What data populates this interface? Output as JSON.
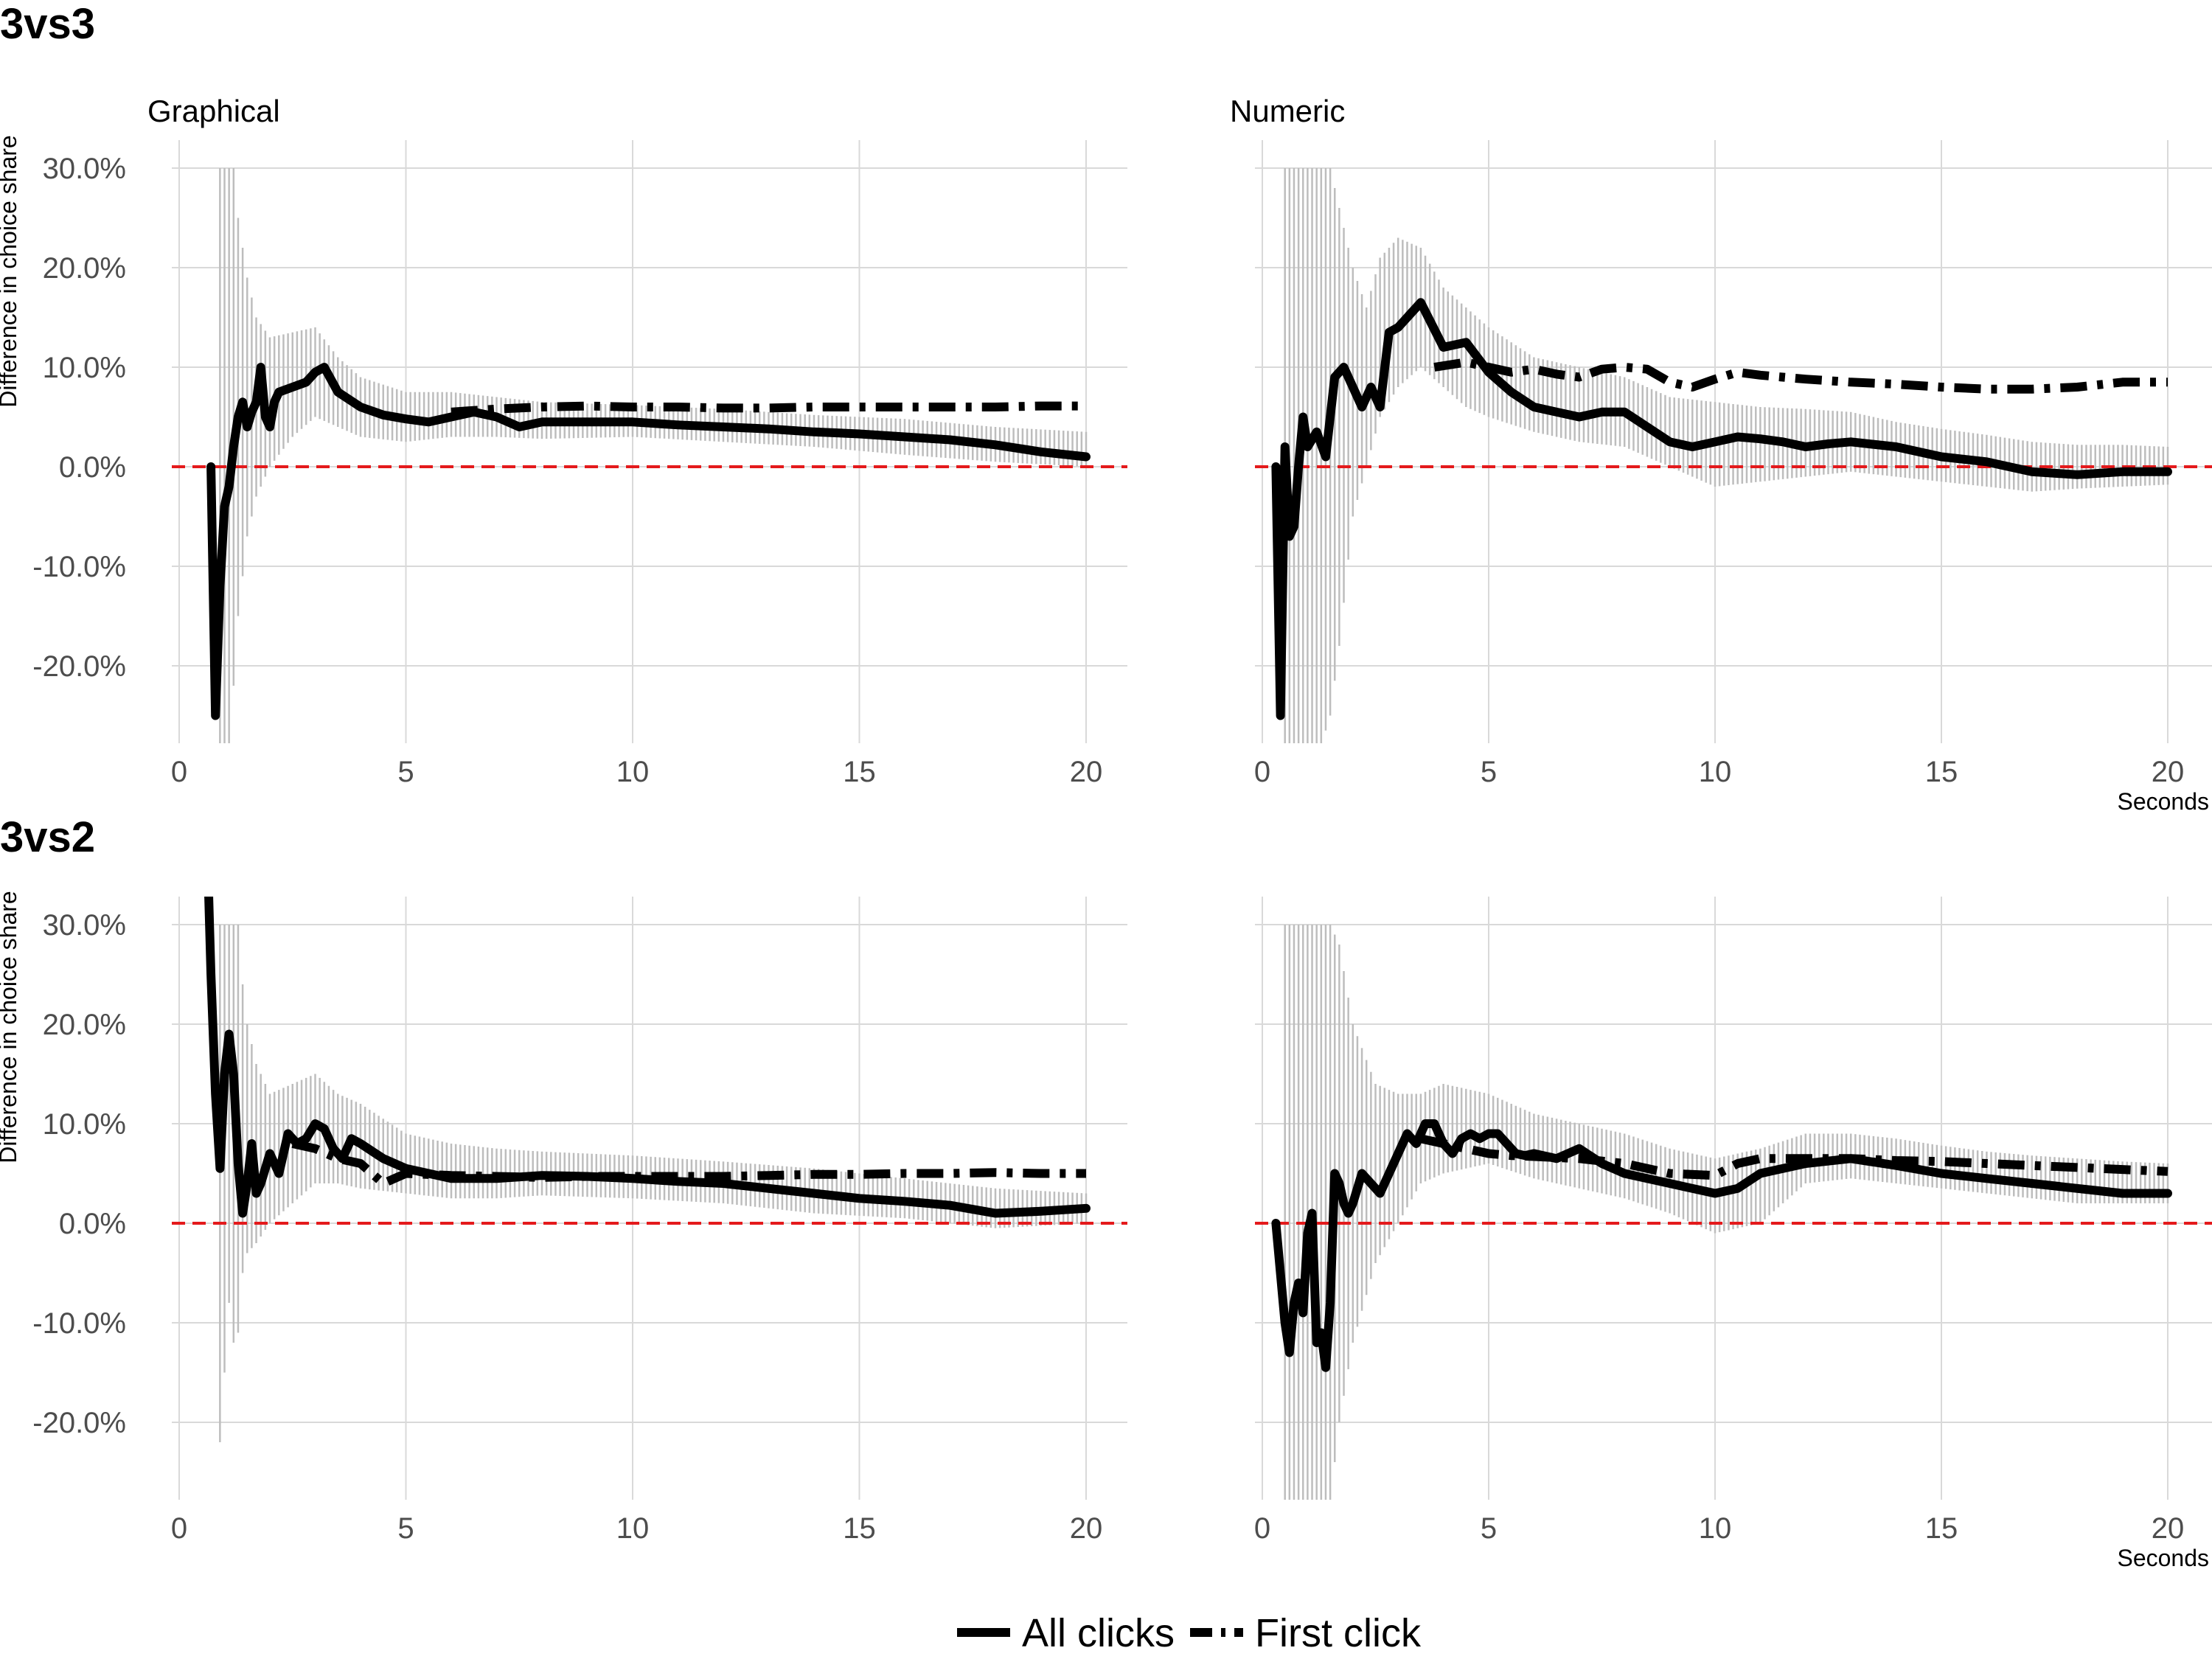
{
  "figure": {
    "rows": [
      {
        "title": "3vs3"
      },
      {
        "title": "3vs2"
      }
    ],
    "columns": [
      {
        "title": "Graphical"
      },
      {
        "title": "Numeric"
      }
    ],
    "legend": {
      "position": "bottom",
      "items": [
        {
          "label": "All clicks",
          "style": "solid"
        },
        {
          "label": "First click",
          "style": "dashed"
        }
      ]
    },
    "colors": {
      "line": "#000000",
      "reference_line": "#e41a1c",
      "error_bars": "#bdbdbd",
      "grid": "#d9d9d9"
    }
  },
  "chart_data": [
    {
      "type": "line",
      "panel": "3vs3 / Graphical",
      "row": "3vs3",
      "column": "Graphical",
      "ylabel": "Difference in choice share",
      "xlabel": "",
      "xlim": [
        0,
        20
      ],
      "ylim": [
        -0.3,
        0.3
      ],
      "xticks": [
        0,
        5,
        10,
        15,
        20
      ],
      "yticks": [
        -0.2,
        -0.1,
        0.0,
        0.1,
        0.2,
        0.3
      ],
      "ytick_labels": [
        "-20.0%",
        "-10.0%",
        "0.0%",
        "10.0%",
        "20.0%",
        "30.0%"
      ],
      "grid": true,
      "reference_line_y": 0,
      "series": [
        {
          "name": "All clicks",
          "style": "solid",
          "x": [
            0.7,
            0.8,
            0.9,
            1.0,
            1.1,
            1.2,
            1.3,
            1.4,
            1.5,
            1.6,
            1.7,
            1.8,
            1.9,
            2.0,
            2.1,
            2.2,
            2.5,
            2.8,
            3.0,
            3.2,
            3.5,
            4.0,
            4.5,
            5.0,
            5.5,
            6.0,
            6.5,
            7.0,
            7.5,
            8.0,
            9.0,
            10.0,
            11.0,
            12.0,
            13.0,
            14.0,
            15.0,
            16.0,
            17.0,
            18.0,
            19.0,
            20.0
          ],
          "y": [
            0.0,
            -0.25,
            -0.12,
            -0.04,
            -0.02,
            0.02,
            0.05,
            0.065,
            0.04,
            0.055,
            0.065,
            0.1,
            0.05,
            0.04,
            0.065,
            0.075,
            0.08,
            0.085,
            0.095,
            0.1,
            0.075,
            0.06,
            0.052,
            0.048,
            0.045,
            0.05,
            0.055,
            0.05,
            0.04,
            0.045,
            0.045,
            0.045,
            0.042,
            0.04,
            0.038,
            0.035,
            0.033,
            0.03,
            0.027,
            0.022,
            0.015,
            0.01
          ]
        },
        {
          "name": "First click",
          "style": "dashed",
          "x": [
            6.0,
            7.0,
            8.0,
            9.0,
            10.0,
            11.0,
            12.0,
            13.0,
            14.0,
            15.0,
            16.0,
            17.0,
            18.0,
            19.0,
            20.0
          ],
          "y": [
            0.055,
            0.058,
            0.06,
            0.061,
            0.06,
            0.06,
            0.059,
            0.059,
            0.06,
            0.06,
            0.06,
            0.06,
            0.06,
            0.061,
            0.061
          ]
        },
        {
          "name": "95% CI",
          "style": "error-bars",
          "x": [
            0.9,
            1.0,
            1.1,
            1.2,
            1.3,
            1.5,
            1.7,
            2.0,
            2.5,
            3.0,
            3.5,
            4.0,
            5.0,
            6.0,
            7.0,
            8.0,
            10.0,
            12.0,
            14.0,
            16.0,
            18.0,
            20.0
          ],
          "low": [
            -0.28,
            -0.28,
            -0.28,
            -0.22,
            -0.15,
            -0.07,
            -0.03,
            0.0,
            0.03,
            0.05,
            0.04,
            0.03,
            0.025,
            0.03,
            0.03,
            0.028,
            0.03,
            0.025,
            0.02,
            0.012,
            0.005,
            0.0
          ],
          "high": [
            0.3,
            0.3,
            0.3,
            0.3,
            0.25,
            0.19,
            0.15,
            0.13,
            0.135,
            0.14,
            0.11,
            0.09,
            0.075,
            0.075,
            0.07,
            0.065,
            0.062,
            0.058,
            0.052,
            0.048,
            0.04,
            0.035
          ]
        }
      ]
    },
    {
      "type": "line",
      "panel": "3vs3 / Numeric",
      "row": "3vs3",
      "column": "Numeric",
      "xlabel": "Seconds",
      "xlim": [
        0,
        20
      ],
      "ylim": [
        -0.3,
        0.3
      ],
      "xticks": [
        0,
        5,
        10,
        15,
        20
      ],
      "grid": true,
      "reference_line_y": 0,
      "series": [
        {
          "name": "All clicks",
          "style": "solid",
          "x": [
            0.3,
            0.4,
            0.5,
            0.6,
            0.7,
            0.8,
            0.9,
            1.0,
            1.2,
            1.4,
            1.6,
            1.8,
            2.0,
            2.2,
            2.4,
            2.6,
            2.8,
            3.0,
            3.2,
            3.5,
            4.0,
            4.5,
            5.0,
            5.5,
            6.0,
            6.5,
            7.0,
            7.5,
            8.0,
            8.5,
            9.0,
            9.5,
            10.0,
            10.5,
            11.0,
            11.5,
            12.0,
            12.5,
            13.0,
            14.0,
            15.0,
            16.0,
            17.0,
            18.0,
            19.0,
            20.0
          ],
          "y": [
            0.0,
            -0.25,
            0.02,
            -0.07,
            -0.06,
            0.0,
            0.05,
            0.02,
            0.035,
            0.01,
            0.09,
            0.1,
            0.08,
            0.06,
            0.08,
            0.06,
            0.135,
            0.14,
            0.15,
            0.165,
            0.12,
            0.125,
            0.095,
            0.075,
            0.06,
            0.055,
            0.05,
            0.055,
            0.055,
            0.04,
            0.025,
            0.02,
            0.025,
            0.03,
            0.028,
            0.025,
            0.02,
            0.023,
            0.025,
            0.02,
            0.01,
            0.005,
            -0.005,
            -0.008,
            -0.005,
            -0.005
          ]
        },
        {
          "name": "First click",
          "style": "dashed",
          "x": [
            3.8,
            4.5,
            5.0,
            5.5,
            6.0,
            6.5,
            7.0,
            7.5,
            8.0,
            8.5,
            9.0,
            9.5,
            10.0,
            10.5,
            11.0,
            12.0,
            13.0,
            14.0,
            15.0,
            16.0,
            17.0,
            18.0,
            19.0,
            20.0
          ],
          "y": [
            0.1,
            0.105,
            0.1,
            0.095,
            0.098,
            0.093,
            0.09,
            0.098,
            0.1,
            0.098,
            0.085,
            0.08,
            0.088,
            0.095,
            0.092,
            0.088,
            0.085,
            0.083,
            0.08,
            0.078,
            0.078,
            0.08,
            0.085,
            0.085
          ]
        },
        {
          "name": "95% CI",
          "style": "error-bars",
          "x": [
            0.5,
            0.7,
            0.9,
            1.1,
            1.3,
            1.5,
            1.7,
            2.0,
            2.3,
            2.6,
            3.0,
            3.5,
            4.0,
            4.5,
            5.0,
            6.0,
            7.0,
            8.0,
            9.0,
            10.0,
            11.0,
            12.0,
            13.0,
            14.0,
            15.0,
            16.0,
            17.0,
            18.0,
            19.0,
            20.0
          ],
          "low": [
            -0.28,
            -0.28,
            -0.28,
            -0.28,
            -0.28,
            -0.25,
            -0.18,
            -0.05,
            0.0,
            0.05,
            0.08,
            0.1,
            0.08,
            0.06,
            0.05,
            0.035,
            0.025,
            0.02,
            0.0,
            -0.02,
            -0.015,
            -0.01,
            -0.005,
            -0.01,
            -0.015,
            -0.02,
            -0.025,
            -0.022,
            -0.02,
            -0.018
          ],
          "high": [
            0.3,
            0.3,
            0.3,
            0.3,
            0.3,
            0.3,
            0.26,
            0.2,
            0.16,
            0.21,
            0.23,
            0.22,
            0.18,
            0.16,
            0.14,
            0.11,
            0.1,
            0.09,
            0.07,
            0.065,
            0.06,
            0.058,
            0.055,
            0.045,
            0.038,
            0.032,
            0.025,
            0.022,
            0.022,
            0.02
          ]
        }
      ]
    },
    {
      "type": "line",
      "panel": "3vs2 / Graphical",
      "row": "3vs2",
      "column": "Graphical",
      "ylabel": "Difference in choice share",
      "xlabel": "",
      "xlim": [
        0,
        20
      ],
      "ylim": [
        -0.3,
        0.3
      ],
      "xticks": [
        0,
        5,
        10,
        15,
        20
      ],
      "yticks": [
        -0.2,
        -0.1,
        0.0,
        0.1,
        0.2,
        0.3
      ],
      "ytick_labels": [
        "-20.0%",
        "-10.0%",
        "0.0%",
        "10.0%",
        "20.0%",
        "30.0%"
      ],
      "grid": true,
      "reference_line_y": 0,
      "series": [
        {
          "name": "All clicks",
          "style": "solid",
          "x": [
            0.65,
            0.7,
            0.8,
            0.9,
            1.0,
            1.1,
            1.2,
            1.3,
            1.4,
            1.5,
            1.6,
            1.7,
            1.8,
            2.0,
            2.2,
            2.4,
            2.6,
            2.8,
            3.0,
            3.2,
            3.4,
            3.6,
            3.8,
            4.0,
            4.5,
            5.0,
            5.5,
            6.0,
            7.0,
            8.0,
            9.0,
            10.0,
            11.0,
            12.0,
            13.0,
            14.0,
            15.0,
            16.0,
            17.0,
            18.0,
            19.0,
            20.0
          ],
          "y": [
            0.33,
            0.25,
            0.13,
            0.055,
            0.15,
            0.19,
            0.15,
            0.06,
            0.01,
            0.04,
            0.08,
            0.03,
            0.04,
            0.07,
            0.05,
            0.09,
            0.08,
            0.085,
            0.1,
            0.095,
            0.075,
            0.065,
            0.085,
            0.08,
            0.065,
            0.055,
            0.05,
            0.045,
            0.045,
            0.048,
            0.047,
            0.045,
            0.042,
            0.04,
            0.035,
            0.03,
            0.025,
            0.022,
            0.018,
            0.01,
            0.012,
            0.015
          ]
        },
        {
          "name": "First click",
          "style": "dashed",
          "x": [
            2.5,
            3.0,
            3.5,
            4.0,
            4.5,
            5.0,
            6.0,
            7.0,
            8.0,
            9.0,
            10.0,
            11.0,
            12.0,
            13.0,
            14.0,
            15.0,
            16.0,
            17.0,
            18.0,
            19.0,
            20.0
          ],
          "y": [
            0.08,
            0.075,
            0.065,
            0.06,
            0.04,
            0.05,
            0.048,
            0.047,
            0.046,
            0.047,
            0.047,
            0.047,
            0.047,
            0.048,
            0.049,
            0.049,
            0.05,
            0.05,
            0.051,
            0.05,
            0.05
          ]
        },
        {
          "name": "95% CI",
          "style": "error-bars",
          "x": [
            0.9,
            1.0,
            1.1,
            1.2,
            1.3,
            1.4,
            1.5,
            1.7,
            2.0,
            2.5,
            3.0,
            3.5,
            4.0,
            5.0,
            6.0,
            7.0,
            8.0,
            10.0,
            12.0,
            14.0,
            16.0,
            18.0,
            20.0
          ],
          "low": [
            -0.22,
            -0.15,
            -0.08,
            -0.12,
            -0.11,
            -0.05,
            -0.03,
            -0.02,
            0.0,
            0.02,
            0.04,
            0.04,
            0.035,
            0.03,
            0.025,
            0.025,
            0.028,
            0.025,
            0.02,
            0.01,
            0.005,
            -0.005,
            0.0
          ],
          "high": [
            0.3,
            0.3,
            0.3,
            0.3,
            0.3,
            0.24,
            0.2,
            0.16,
            0.13,
            0.14,
            0.15,
            0.13,
            0.12,
            0.09,
            0.08,
            0.075,
            0.072,
            0.068,
            0.062,
            0.055,
            0.045,
            0.035,
            0.03
          ]
        }
      ]
    },
    {
      "type": "line",
      "panel": "3vs2 / Numeric",
      "row": "3vs2",
      "column": "Numeric",
      "xlabel": "Seconds",
      "xlim": [
        0,
        20
      ],
      "ylim": [
        -0.3,
        0.3
      ],
      "xticks": [
        0,
        5,
        10,
        15,
        20
      ],
      "grid": true,
      "reference_line_y": 0,
      "series": [
        {
          "name": "All clicks",
          "style": "solid",
          "x": [
            0.3,
            0.5,
            0.6,
            0.7,
            0.8,
            0.9,
            1.0,
            1.1,
            1.2,
            1.3,
            1.4,
            1.5,
            1.6,
            1.7,
            1.8,
            1.9,
            2.0,
            2.2,
            2.4,
            2.6,
            2.8,
            3.0,
            3.2,
            3.4,
            3.6,
            3.8,
            4.0,
            4.2,
            4.4,
            4.6,
            4.8,
            5.0,
            5.2,
            5.4,
            5.6,
            5.8,
            6.0,
            6.5,
            7.0,
            7.5,
            8.0,
            8.5,
            9.0,
            9.5,
            10.0,
            10.5,
            11.0,
            12.0,
            13.0,
            14.0,
            15.0,
            16.0,
            17.0,
            18.0,
            19.0,
            20.0
          ],
          "y": [
            0.0,
            -0.1,
            -0.13,
            -0.08,
            -0.06,
            -0.09,
            -0.01,
            0.01,
            -0.12,
            -0.11,
            -0.145,
            -0.08,
            0.05,
            0.04,
            0.02,
            0.01,
            0.02,
            0.05,
            0.04,
            0.03,
            0.05,
            0.07,
            0.09,
            0.08,
            0.1,
            0.1,
            0.08,
            0.07,
            0.085,
            0.09,
            0.085,
            0.09,
            0.09,
            0.08,
            0.07,
            0.068,
            0.07,
            0.065,
            0.075,
            0.06,
            0.05,
            0.045,
            0.04,
            0.035,
            0.03,
            0.035,
            0.05,
            0.06,
            0.065,
            0.058,
            0.05,
            0.045,
            0.04,
            0.035,
            0.03,
            0.03
          ]
        },
        {
          "name": "First click",
          "style": "dashed",
          "x": [
            3.5,
            4.0,
            4.5,
            5.0,
            5.5,
            6.0,
            7.0,
            8.0,
            9.0,
            10.0,
            10.5,
            11.0,
            12.0,
            13.0,
            14.0,
            15.0,
            16.0,
            17.0,
            18.0,
            19.0,
            20.0
          ],
          "y": [
            0.085,
            0.08,
            0.075,
            0.07,
            0.068,
            0.067,
            0.065,
            0.06,
            0.05,
            0.048,
            0.06,
            0.065,
            0.065,
            0.065,
            0.063,
            0.062,
            0.06,
            0.058,
            0.056,
            0.054,
            0.052
          ]
        },
        {
          "name": "95% CI",
          "style": "error-bars",
          "x": [
            0.5,
            0.7,
            0.9,
            1.1,
            1.3,
            1.5,
            1.7,
            2.0,
            2.5,
            3.0,
            3.5,
            4.0,
            5.0,
            6.0,
            7.0,
            8.0,
            9.0,
            10.0,
            11.0,
            12.0,
            13.0,
            14.0,
            15.0,
            16.0,
            17.0,
            18.0,
            19.0,
            20.0
          ],
          "low": [
            -0.28,
            -0.28,
            -0.28,
            -0.28,
            -0.28,
            -0.28,
            -0.2,
            -0.12,
            -0.04,
            0.0,
            0.04,
            0.05,
            0.06,
            0.045,
            0.035,
            0.025,
            0.01,
            -0.01,
            0.0,
            0.04,
            0.045,
            0.04,
            0.035,
            0.03,
            0.025,
            0.02,
            0.02,
            0.02
          ],
          "high": [
            0.3,
            0.3,
            0.3,
            0.3,
            0.3,
            0.3,
            0.28,
            0.2,
            0.14,
            0.13,
            0.13,
            0.14,
            0.13,
            0.11,
            0.1,
            0.09,
            0.075,
            0.065,
            0.075,
            0.09,
            0.09,
            0.085,
            0.078,
            0.072,
            0.068,
            0.065,
            0.062,
            0.06
          ]
        }
      ]
    }
  ]
}
